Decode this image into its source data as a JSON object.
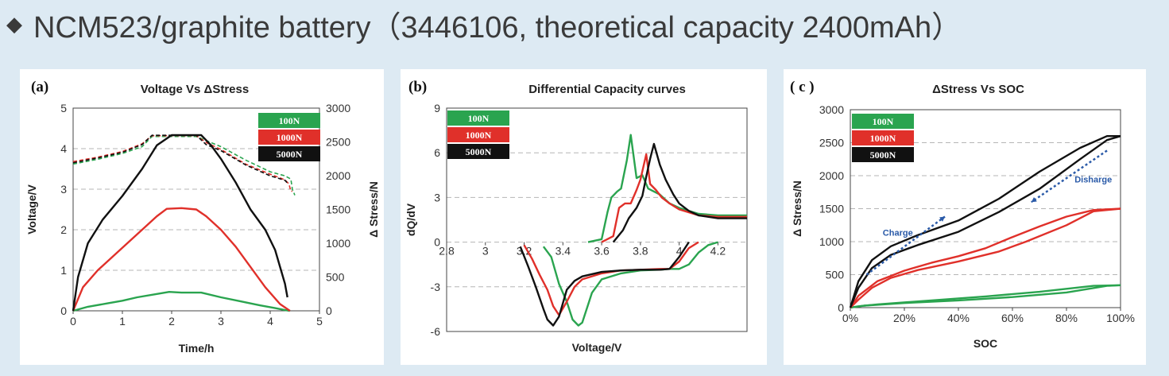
{
  "slide": {
    "bullet": "◆",
    "title": "NCM523/graphite battery（3446106, theoretical capacity 2400mAh）"
  },
  "colors": {
    "100N": "#2aa44f",
    "1000N": "#e0302a",
    "5000N": "#111111",
    "annotation": "#2a5aa8"
  },
  "legend": [
    "100N",
    "1000N",
    "5000N"
  ],
  "chart_data": [
    {
      "type": "line",
      "panel_label": "(a)",
      "title": "Voltage Vs ΔStress",
      "xlabel": "Time/h",
      "ylabel": "Voltage/V",
      "y2label": "Δ Stress/N",
      "xlim": [
        0,
        5
      ],
      "ylim": [
        0,
        5
      ],
      "y2lim": [
        0,
        3000
      ],
      "xticks": [
        "0",
        "1",
        "2",
        "3",
        "4",
        "5"
      ],
      "yticks": [
        "0",
        "1",
        "2",
        "3",
        "4",
        "5"
      ],
      "y2ticks": [
        "0",
        "500",
        "1000",
        "1500",
        "2000",
        "2500",
        "3000"
      ],
      "grid": "horizontal dashed",
      "legend_position": "top-right",
      "series": [
        {
          "name": "100N",
          "axis": "left",
          "style": "dashed",
          "x": [
            0,
            0.5,
            1.0,
            1.4,
            1.6,
            2.0,
            2.5,
            2.7,
            3.0,
            3.5,
            4.0,
            4.3,
            4.42,
            4.45,
            4.5
          ],
          "y": [
            3.62,
            3.74,
            3.88,
            4.05,
            4.3,
            4.3,
            4.3,
            4.2,
            4.05,
            3.72,
            3.43,
            3.33,
            3.25,
            3.0,
            2.85
          ]
        },
        {
          "name": "1000N",
          "axis": "left",
          "style": "dashed",
          "x": [
            0,
            0.5,
            1.0,
            1.4,
            1.6,
            2.0,
            2.5,
            2.7,
            3.0,
            3.5,
            4.0,
            4.3,
            4.38,
            4.42,
            4.45
          ],
          "y": [
            3.68,
            3.79,
            3.93,
            4.12,
            4.32,
            4.32,
            4.32,
            4.15,
            3.98,
            3.62,
            3.37,
            3.23,
            3.13,
            2.95,
            2.95
          ]
        },
        {
          "name": "5000N",
          "axis": "left",
          "style": "dashed",
          "x": [
            0,
            0.5,
            1.0,
            1.4,
            1.6,
            2.0,
            2.5,
            2.7,
            3.0,
            3.5,
            4.0,
            4.3,
            4.35
          ],
          "y": [
            3.65,
            3.77,
            3.91,
            4.1,
            4.33,
            4.33,
            4.33,
            4.1,
            3.95,
            3.6,
            3.33,
            3.22,
            3.15
          ]
        },
        {
          "name": "100N",
          "axis": "right",
          "style": "solid",
          "x": [
            0,
            0.3,
            0.7,
            1.0,
            1.3,
            1.7,
            1.95,
            2.2,
            2.6,
            3.0,
            3.4,
            3.8,
            4.1,
            4.3,
            4.4
          ],
          "y": [
            0,
            60,
            110,
            150,
            200,
            250,
            280,
            270,
            270,
            200,
            140,
            80,
            40,
            10,
            0
          ]
        },
        {
          "name": "1000N",
          "axis": "right",
          "style": "solid",
          "x": [
            0,
            0.2,
            0.5,
            0.8,
            1.1,
            1.4,
            1.7,
            1.9,
            2.2,
            2.5,
            2.7,
            3.0,
            3.3,
            3.6,
            3.9,
            4.2,
            4.4
          ],
          "y": [
            0,
            350,
            600,
            800,
            1000,
            1200,
            1400,
            1510,
            1520,
            1500,
            1400,
            1200,
            950,
            650,
            350,
            100,
            0
          ]
        },
        {
          "name": "5000N",
          "axis": "right",
          "style": "solid",
          "x": [
            0,
            0.1,
            0.3,
            0.6,
            1.0,
            1.4,
            1.7,
            2.0,
            2.3,
            2.6,
            2.8,
            3.0,
            3.3,
            3.6,
            3.9,
            4.1,
            4.3,
            4.35
          ],
          "y": [
            0,
            500,
            1000,
            1350,
            1700,
            2100,
            2450,
            2600,
            2600,
            2600,
            2450,
            2250,
            1900,
            1500,
            1200,
            900,
            400,
            200
          ]
        }
      ]
    },
    {
      "type": "line",
      "panel_label": "(b)",
      "title": "Differential Capacity curves",
      "xlabel": "Voltage/V",
      "ylabel": "dQ/dV",
      "xlim": [
        2.8,
        4.35
      ],
      "ylim": [
        -6,
        9
      ],
      "xticks": [
        "2.8",
        "3",
        "3.2",
        "3.4",
        "3.6",
        "3.8",
        "4",
        "4.2"
      ],
      "yticks": [
        "-6",
        "-3",
        "0",
        "3",
        "6",
        "9"
      ],
      "grid": "horizontal dashed",
      "legend_position": "top-left",
      "series": [
        {
          "name": "100N",
          "x": [
            3.53,
            3.6,
            3.63,
            3.65,
            3.68,
            3.7,
            3.73,
            3.75,
            3.78,
            3.81,
            3.84,
            3.87,
            3.9,
            3.95,
            4.0,
            4.1,
            4.2,
            4.35
          ],
          "y": [
            0,
            0.2,
            2.0,
            3.0,
            3.4,
            3.6,
            5.5,
            7.2,
            4.3,
            4.5,
            3.6,
            3.4,
            3.2,
            2.6,
            2.3,
            1.9,
            1.8,
            1.8
          ]
        },
        {
          "name": "1000N",
          "x": [
            3.6,
            3.66,
            3.69,
            3.72,
            3.75,
            3.78,
            3.8,
            3.83,
            3.85,
            3.88,
            3.91,
            3.95,
            4.0,
            4.1,
            4.2,
            4.35
          ],
          "y": [
            0,
            0.4,
            2.3,
            2.6,
            2.6,
            3.5,
            4.2,
            5.9,
            3.9,
            3.5,
            3.0,
            2.6,
            2.2,
            1.8,
            1.7,
            1.7
          ]
        },
        {
          "name": "5000N",
          "x": [
            3.66,
            3.71,
            3.74,
            3.78,
            3.81,
            3.83,
            3.85,
            3.87,
            3.9,
            3.93,
            3.97,
            4.0,
            4.05,
            4.1,
            4.2,
            4.35
          ],
          "y": [
            0,
            0.8,
            1.6,
            2.3,
            3.1,
            4.4,
            5.6,
            6.6,
            5.2,
            4.2,
            3.2,
            2.6,
            2.1,
            1.8,
            1.6,
            1.6
          ]
        },
        {
          "name": "100N",
          "x": [
            3.3,
            3.34,
            3.38,
            3.42,
            3.45,
            3.48,
            3.5,
            3.55,
            3.6,
            3.7,
            3.8,
            3.9,
            3.95,
            4.0,
            4.05,
            4.1,
            4.15,
            4.2
          ],
          "y": [
            -0.3,
            -1.0,
            -2.8,
            -4.0,
            -5.2,
            -5.6,
            -5.4,
            -3.4,
            -2.5,
            -2.1,
            -1.9,
            -1.85,
            -1.8,
            -1.8,
            -1.5,
            -0.7,
            -0.2,
            0
          ]
        },
        {
          "name": "1000N",
          "x": [
            3.2,
            3.24,
            3.28,
            3.32,
            3.35,
            3.38,
            3.42,
            3.46,
            3.5,
            3.6,
            3.7,
            3.8,
            3.9,
            3.95,
            4.0,
            4.05,
            4.1
          ],
          "y": [
            -0.2,
            -1.1,
            -2.2,
            -3.2,
            -4.3,
            -4.9,
            -4.0,
            -3.0,
            -2.5,
            -2.1,
            -1.9,
            -1.85,
            -1.8,
            -1.8,
            -1.3,
            -0.4,
            0
          ]
        },
        {
          "name": "5000N",
          "x": [
            3.18,
            3.22,
            3.26,
            3.3,
            3.32,
            3.35,
            3.38,
            3.42,
            3.46,
            3.5,
            3.6,
            3.7,
            3.8,
            3.9,
            3.95,
            4.0,
            4.05
          ],
          "y": [
            -0.3,
            -1.6,
            -3.0,
            -4.5,
            -5.2,
            -5.6,
            -5.0,
            -3.2,
            -2.6,
            -2.3,
            -2.0,
            -1.9,
            -1.85,
            -1.85,
            -1.8,
            -1.0,
            0
          ]
        }
      ]
    },
    {
      "type": "line",
      "panel_label": "( c )",
      "title": "ΔStress Vs SOC",
      "xlabel": "SOC",
      "ylabel": "Δ Stress/N",
      "xlim": [
        0,
        100
      ],
      "ylim": [
        0,
        3000
      ],
      "xticks": [
        "0%",
        "20%",
        "40%",
        "60%",
        "80%",
        "100%"
      ],
      "yticks": [
        "0",
        "500",
        "1000",
        "1500",
        "2000",
        "2500",
        "3000"
      ],
      "grid": "horizontal dashed",
      "legend_position": "top-left",
      "annotations": [
        "Charge",
        "Disharge"
      ],
      "series": [
        {
          "name": "100N",
          "x": [
            0,
            5,
            20,
            40,
            60,
            80,
            95,
            100
          ],
          "y": [
            0,
            30,
            70,
            110,
            160,
            230,
            330,
            340
          ]
        },
        {
          "name": "100N",
          "x": [
            100,
            90,
            70,
            50,
            30,
            10,
            3,
            0
          ],
          "y": [
            340,
            330,
            240,
            170,
            110,
            50,
            20,
            0
          ]
        },
        {
          "name": "1000N",
          "x": [
            0,
            3,
            8,
            15,
            25,
            40,
            55,
            65,
            80,
            90,
            100
          ],
          "y": [
            0,
            120,
            300,
            450,
            570,
            700,
            850,
            1000,
            1250,
            1460,
            1500
          ]
        },
        {
          "name": "1000N",
          "x": [
            100,
            90,
            80,
            70,
            60,
            50,
            40,
            30,
            20,
            10,
            3,
            0
          ],
          "y": [
            1500,
            1480,
            1380,
            1230,
            1070,
            900,
            780,
            680,
            560,
            400,
            180,
            0
          ]
        },
        {
          "name": "5000N",
          "x": [
            0,
            3,
            8,
            15,
            25,
            40,
            55,
            70,
            85,
            95,
            100
          ],
          "y": [
            0,
            300,
            600,
            800,
            950,
            1150,
            1450,
            1800,
            2250,
            2540,
            2600
          ]
        },
        {
          "name": "5000N",
          "x": [
            100,
            95,
            85,
            70,
            55,
            40,
            25,
            15,
            8,
            3,
            0
          ],
          "y": [
            2600,
            2600,
            2420,
            2060,
            1650,
            1320,
            1100,
            930,
            720,
            400,
            0
          ]
        }
      ]
    }
  ]
}
